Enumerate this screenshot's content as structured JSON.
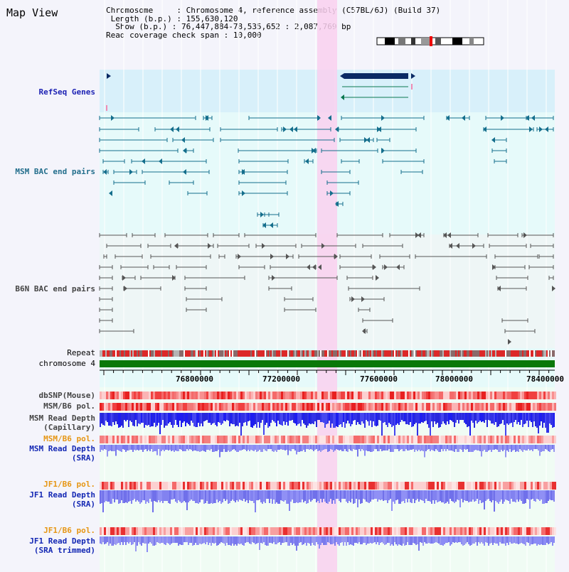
{
  "app": {
    "title": "Map View"
  },
  "info": {
    "chromosome_label": "Chromosome",
    "chromosome_value": "Chromosome 4, reference assembly (C57BL/6J) (Build 37)",
    "length_label": "Length (b.p.)",
    "length_value": "155,630,120",
    "show_label": "Show (b.p.)",
    "show_value": "76,447,884-78,535,652 : 2,087,769 bp",
    "coverage_label": "Read coverage check span",
    "coverage_value": "10,000"
  },
  "tracks": {
    "refseq": "RefSeq Genes",
    "msm_bac": "MSM BAC end pairs",
    "b6n_bac": "B6N BAC end pairs",
    "repeat": "Repeat",
    "chromosome": "chromosome 4",
    "dbsnp": "dbSNP(Mouse)",
    "msm_b6_pol": "MSM/B6 pol.",
    "msm_depth_cap_1": "MSM Read Depth",
    "msm_depth_cap_2": "(Capillary)",
    "msm_b6_pol_2": "MSM/B6 pol.",
    "msm_depth_sra_1": "MSM Read Depth",
    "msm_depth_sra_2": "(SRA)",
    "jf1_b6_pol": "JF1/B6 pol.",
    "jf1_depth_sra_1": "JF1 Read Depth",
    "jf1_depth_sra_2": "(SRA)",
    "jf1_b6_pol_2": "JF1/B6 pol.",
    "jf1_depth_trim_1": "JF1 Read Depth",
    "jf1_depth_trim_2": "(SRA trimmed)"
  },
  "axis": {
    "ticks": [
      "76800000",
      "77200000",
      "77600000",
      "78000000",
      "78400000"
    ]
  },
  "colors": {
    "highlight": "#f9d0ee",
    "refseq_bg": "#d8f0fa",
    "panel_bg": "#e6fafa",
    "chromosome_bar": "#0a780a",
    "gene_dark": "#0a2a64",
    "gene_line": "#0a7850",
    "bac_msm": "#146e8c",
    "bac_b6n": "#555555",
    "depth_blue": "#1e1ef0",
    "depth_violet": "#8c8cf5",
    "pol_red": "#f03232"
  }
}
